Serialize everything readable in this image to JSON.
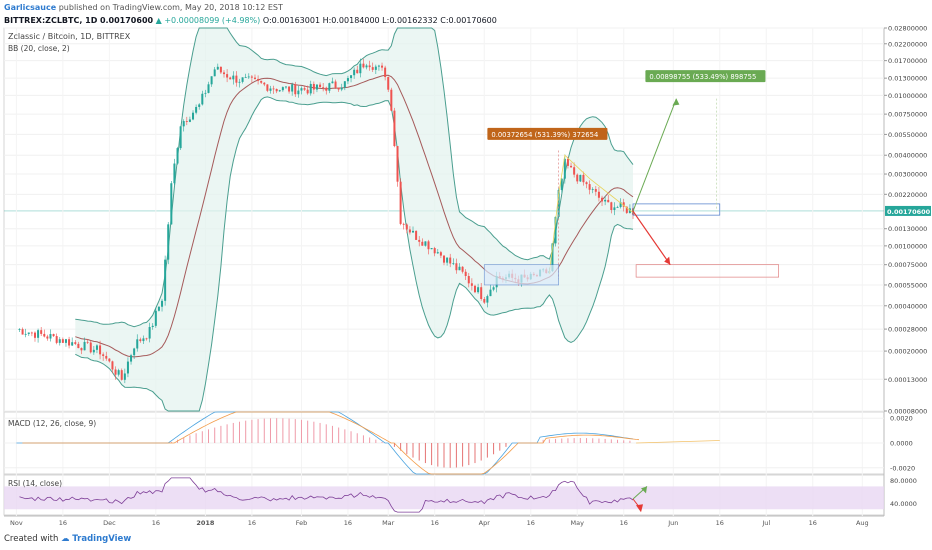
{
  "header": {
    "author": "Garlicsauce",
    "published_text": "published on TradingView.com, May 20, 2018 10:12 EST",
    "symbol": "BITTREX:ZCLBTC, 1D",
    "price": "0.00170600",
    "change": "▲ +0.00008099 (+4.98%)",
    "ohlc": "O:0.00163001 H:0.00184000 L:0.00162332 C:0.00170600"
  },
  "footer": {
    "created_with": "Created with",
    "brand": "TradingView"
  },
  "colors": {
    "up": "#26a69a",
    "down": "#ef5350",
    "bb_band": "#4a9e8f",
    "bb_fill": "#e3f2ee",
    "bb_basis": "#a55a5a",
    "macd": "#4aa3df",
    "signal": "#f39c4a",
    "rsi": "#7e3f98",
    "rsi_band": "#e9d7f2",
    "green_arrow": "#6aaa53",
    "red_arrow": "#e53935"
  },
  "chart_data": [
    {
      "type": "candlestick",
      "title": "Zclassic / Bitcoin, 1D, BITTREX",
      "indicator_label": "BB (20, close, 2)",
      "y_scale": "log",
      "ylim": [
        8e-05,
        0.028
      ],
      "y_ticks": [
        "0.02800000",
        "0.02200000",
        "0.01700000",
        "0.01300000",
        "0.01000000",
        "0.00750000",
        "0.00550000",
        "0.00400000",
        "0.00300000",
        "0.00220000",
        "0.00170600",
        "0.00130000",
        "0.00100000",
        "0.00075000",
        "0.00055000",
        "0.00040000",
        "0.00028000",
        "0.00020000",
        "0.00013000",
        "0.00008000"
      ],
      "last_price_label": "0.00170600",
      "close_series": [
        {
          "date": "2017-11-01",
          "value": 0.00028
        },
        {
          "date": "2017-11-15",
          "value": 0.00024
        },
        {
          "date": "2017-11-28",
          "value": 0.0002
        },
        {
          "date": "2017-12-05",
          "value": 0.00013
        },
        {
          "date": "2017-12-09",
          "value": 0.00022
        },
        {
          "date": "2017-12-14",
          "value": 0.00027
        },
        {
          "date": "2017-12-18",
          "value": 0.00045
        },
        {
          "date": "2017-12-21",
          "value": 0.0025
        },
        {
          "date": "2017-12-24",
          "value": 0.0065
        },
        {
          "date": "2017-12-30",
          "value": 0.0085
        },
        {
          "date": "2018-01-04",
          "value": 0.015
        },
        {
          "date": "2018-01-10",
          "value": 0.013
        },
        {
          "date": "2018-01-18",
          "value": 0.012
        },
        {
          "date": "2018-01-25",
          "value": 0.011
        },
        {
          "date": "2018-02-05",
          "value": 0.011
        },
        {
          "date": "2018-02-15",
          "value": 0.012
        },
        {
          "date": "2018-02-22",
          "value": 0.017
        },
        {
          "date": "2018-02-28",
          "value": 0.014
        },
        {
          "date": "2018-03-02",
          "value": 0.0085
        },
        {
          "date": "2018-03-05",
          "value": 0.0015
        },
        {
          "date": "2018-03-09",
          "value": 0.0012
        },
        {
          "date": "2018-03-16",
          "value": 0.00095
        },
        {
          "date": "2018-03-25",
          "value": 0.00065
        },
        {
          "date": "2018-04-01",
          "value": 0.00045
        },
        {
          "date": "2018-04-05",
          "value": 0.00062
        },
        {
          "date": "2018-04-15",
          "value": 0.0006
        },
        {
          "date": "2018-04-22",
          "value": 0.00068
        },
        {
          "date": "2018-04-25",
          "value": 0.0022
        },
        {
          "date": "2018-04-27",
          "value": 0.0035
        },
        {
          "date": "2018-04-30",
          "value": 0.003
        },
        {
          "date": "2018-05-05",
          "value": 0.0024
        },
        {
          "date": "2018-05-10",
          "value": 0.0019
        },
        {
          "date": "2018-05-15",
          "value": 0.0018
        },
        {
          "date": "2018-05-19",
          "value": 0.0017
        }
      ],
      "annotations": [
        {
          "text": "0.00372654 (531.39%) 372654",
          "color": "#c0651a"
        },
        {
          "text": "0.00898755 (533.49%) 898755",
          "color": "#6aaa53"
        }
      ],
      "x_ticks": [
        "Nov",
        "16",
        "Dec",
        "16",
        "2018",
        "16",
        "Feb",
        "16",
        "Mar",
        "16",
        "Apr",
        "16",
        "May",
        "16",
        "Jun",
        "16",
        "Jul",
        "16",
        "Aug"
      ]
    },
    {
      "type": "line",
      "title": "MACD (12, 26, close, 9)",
      "y_ticks": [
        "0.0020",
        "0.0000",
        "-0.0020"
      ],
      "ylim": [
        -0.0025,
        0.0025
      ]
    },
    {
      "type": "line",
      "title": "RSI (14, close)",
      "y_ticks": [
        "80.0000",
        "40.0000"
      ],
      "ylim": [
        20,
        90
      ]
    }
  ]
}
